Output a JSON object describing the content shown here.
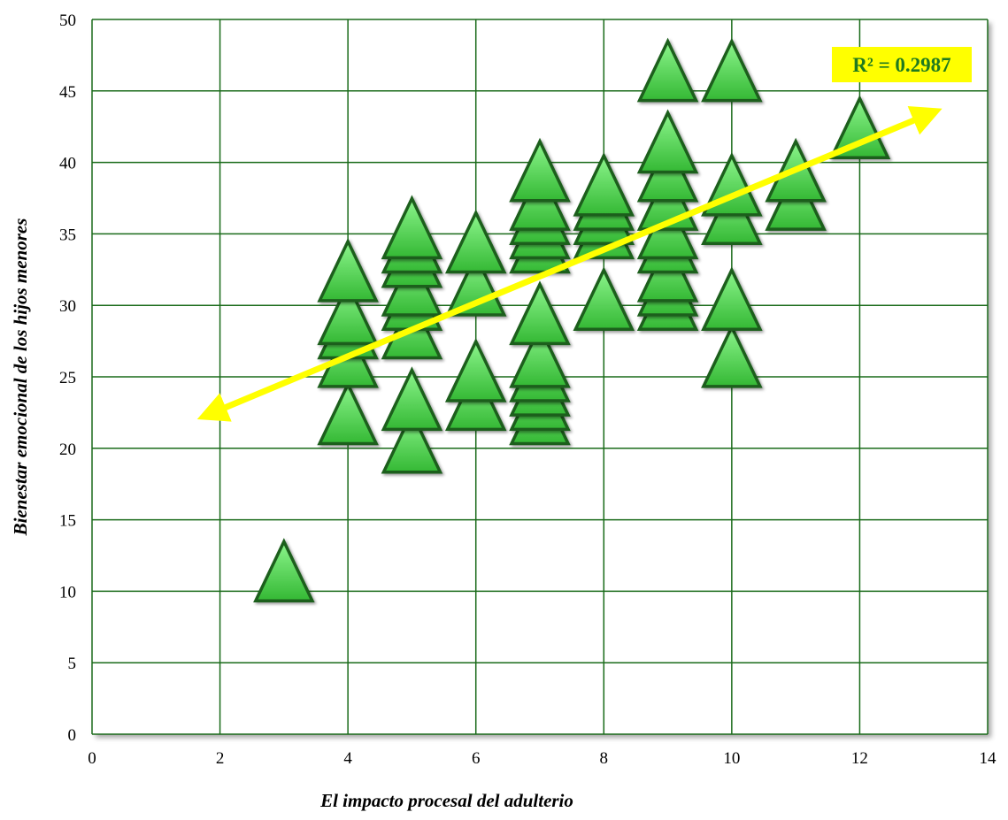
{
  "chart_data": {
    "type": "scatter",
    "title": "",
    "xlabel": "El impacto procesal del adulterio",
    "ylabel": "Bienestar emocional de los hijos menores",
    "xlim": [
      0,
      14
    ],
    "ylim": [
      0,
      50
    ],
    "x_ticks": [
      "0",
      "2",
      "4",
      "6",
      "8",
      "10",
      "12",
      "14"
    ],
    "y_ticks": [
      "0",
      "5",
      "10",
      "15",
      "20",
      "25",
      "30",
      "35",
      "40",
      "45",
      "50"
    ],
    "grid": true,
    "marker": "triangle",
    "annotation": "R² = 0.2987",
    "trendline": {
      "x": [
        2,
        13.2
      ],
      "y": [
        22.7,
        43.6
      ]
    },
    "series": [
      {
        "points": [
          [
            3,
            11
          ],
          [
            4,
            22
          ],
          [
            4,
            26
          ],
          [
            4,
            28
          ],
          [
            4,
            29
          ],
          [
            4,
            32
          ],
          [
            5,
            20
          ],
          [
            5,
            23
          ],
          [
            5,
            28
          ],
          [
            5,
            30
          ],
          [
            5,
            31
          ],
          [
            5,
            33
          ],
          [
            5,
            34
          ],
          [
            5,
            35
          ],
          [
            6,
            23
          ],
          [
            6,
            25
          ],
          [
            6,
            31
          ],
          [
            6,
            34
          ],
          [
            7,
            22
          ],
          [
            7,
            23
          ],
          [
            7,
            24
          ],
          [
            7,
            25
          ],
          [
            7,
            26
          ],
          [
            7,
            29
          ],
          [
            7,
            34
          ],
          [
            7,
            35
          ],
          [
            7,
            36
          ],
          [
            7,
            37
          ],
          [
            7,
            39
          ],
          [
            8,
            30
          ],
          [
            8,
            35
          ],
          [
            8,
            36
          ],
          [
            8,
            37
          ],
          [
            8,
            38
          ],
          [
            9,
            30
          ],
          [
            9,
            31
          ],
          [
            9,
            32
          ],
          [
            9,
            34
          ],
          [
            9,
            35
          ],
          [
            9,
            37
          ],
          [
            9,
            39
          ],
          [
            9,
            41
          ],
          [
            9,
            46
          ],
          [
            10,
            26
          ],
          [
            10,
            30
          ],
          [
            10,
            36
          ],
          [
            10,
            38
          ],
          [
            10,
            46
          ],
          [
            11,
            37
          ],
          [
            11,
            39
          ],
          [
            12,
            42
          ]
        ]
      }
    ]
  },
  "colors": {
    "grid": "#1a6b1a",
    "marker_fill": "#5fe05f",
    "marker_stroke": "#1e5e1e",
    "trendline": "#ffff00",
    "label_bg": "#ffff00",
    "label_text": "#1f7a1f"
  }
}
